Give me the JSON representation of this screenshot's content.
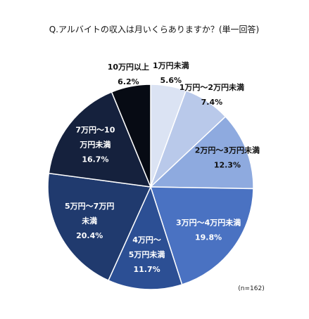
{
  "chart_data": {
    "type": "pie",
    "title": "Q.アルバイトの収入は月いくらありますか？(単一回答)",
    "note": "(n=162)",
    "unit": "%",
    "slices": [
      {
        "label_lines": [
          "1万円未満"
        ],
        "value": 5.6,
        "value_text": "5.6%",
        "color": "#dbe3f3",
        "text_color": "#111111"
      },
      {
        "label_lines": [
          "1万円～2万円未満"
        ],
        "value": 7.4,
        "value_text": "7.4%",
        "color": "#b9c9ea",
        "text_color": "#111111"
      },
      {
        "label_lines": [
          "2万円～3万円未満"
        ],
        "value": 12.3,
        "value_text": "12.3%",
        "color": "#8eaadf",
        "text_color": "#111111"
      },
      {
        "label_lines": [
          "3万円～4万円未満"
        ],
        "value": 19.8,
        "value_text": "19.8%",
        "color": "#4a72c2",
        "text_color": "#ffffff"
      },
      {
        "label_lines": [
          "4万円～",
          "5万円未満"
        ],
        "value": 11.7,
        "value_text": "11.7%",
        "color": "#2c4f94",
        "text_color": "#ffffff"
      },
      {
        "label_lines": [
          "5万円～7万円",
          "未満"
        ],
        "value": 20.4,
        "value_text": "20.4%",
        "color": "#203a6e",
        "text_color": "#ffffff"
      },
      {
        "label_lines": [
          "7万円～10",
          "万円未満"
        ],
        "value": 16.7,
        "value_text": "16.7%",
        "color": "#15213d",
        "text_color": "#ffffff"
      },
      {
        "label_lines": [
          "10万円以上"
        ],
        "value": 6.2,
        "value_text": "6.2%",
        "color": "#070b14",
        "text_color": "#111111"
      }
    ]
  }
}
